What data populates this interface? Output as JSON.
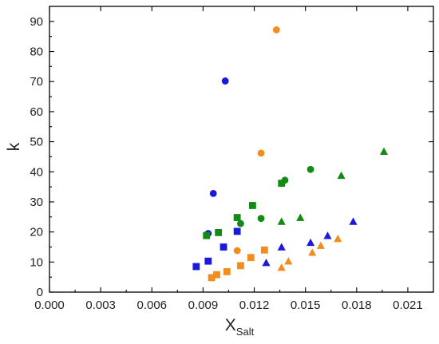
{
  "chart_data": {
    "type": "scatter",
    "title": "",
    "xlabel": "X",
    "xlabel_subscript": "Salt",
    "ylabel": "k",
    "xlim": [
      0.0,
      0.0225
    ],
    "ylim": [
      0,
      95
    ],
    "xticks": [
      0.0,
      0.003,
      0.006,
      0.009,
      0.012,
      0.015,
      0.018,
      0.021
    ],
    "xtick_labels": [
      "0.000",
      "0.003",
      "0.006",
      "0.009",
      "0.012",
      "0.015",
      "0.018",
      "0.021"
    ],
    "yticks": [
      0,
      10,
      20,
      30,
      40,
      50,
      60,
      70,
      80,
      90
    ],
    "ytick_labels": [
      "0",
      "10",
      "20",
      "30",
      "40",
      "50",
      "60",
      "70",
      "80",
      "90"
    ],
    "grid": false,
    "legend": "none",
    "series": [
      {
        "color": "#1a1adc",
        "marker": "circle",
        "points": [
          [
            0.0093,
            19.5
          ],
          [
            0.0096,
            32.8
          ],
          [
            0.0103,
            70.2
          ]
        ]
      },
      {
        "color": "#1a1adc",
        "marker": "square",
        "points": [
          [
            0.0086,
            8.5
          ],
          [
            0.0093,
            10.3
          ],
          [
            0.0102,
            15.0
          ],
          [
            0.011,
            20.2
          ]
        ]
      },
      {
        "color": "#1a1adc",
        "marker": "triangle",
        "points": [
          [
            0.0127,
            9.8
          ],
          [
            0.0136,
            15.0
          ],
          [
            0.0153,
            16.5
          ],
          [
            0.0163,
            18.8
          ],
          [
            0.0178,
            23.5
          ]
        ]
      },
      {
        "color": "#f28c1c",
        "marker": "circle",
        "points": [
          [
            0.011,
            13.8
          ],
          [
            0.0124,
            46.2
          ],
          [
            0.0133,
            87.2
          ]
        ]
      },
      {
        "color": "#f28c1c",
        "marker": "square",
        "points": [
          [
            0.0095,
            4.8
          ],
          [
            0.0098,
            5.8
          ],
          [
            0.0104,
            6.8
          ],
          [
            0.0112,
            8.8
          ],
          [
            0.0118,
            11.5
          ],
          [
            0.0126,
            14.0
          ]
        ]
      },
      {
        "color": "#f28c1c",
        "marker": "triangle",
        "points": [
          [
            0.0136,
            8.2
          ],
          [
            0.014,
            10.3
          ],
          [
            0.0154,
            13.2
          ],
          [
            0.0159,
            15.5
          ],
          [
            0.0169,
            17.8
          ]
        ]
      },
      {
        "color": "#138a13",
        "marker": "circle",
        "points": [
          [
            0.0112,
            22.8
          ],
          [
            0.0124,
            24.5
          ],
          [
            0.0138,
            37.2
          ],
          [
            0.0153,
            40.8
          ]
        ]
      },
      {
        "color": "#138a13",
        "marker": "square",
        "points": [
          [
            0.0092,
            18.8
          ],
          [
            0.0099,
            19.8
          ],
          [
            0.011,
            24.8
          ],
          [
            0.0119,
            28.8
          ],
          [
            0.0136,
            36.2
          ]
        ]
      },
      {
        "color": "#138a13",
        "marker": "triangle",
        "points": [
          [
            0.0136,
            23.5
          ],
          [
            0.0147,
            24.8
          ],
          [
            0.0171,
            38.8
          ],
          [
            0.0196,
            46.8
          ]
        ]
      }
    ]
  }
}
